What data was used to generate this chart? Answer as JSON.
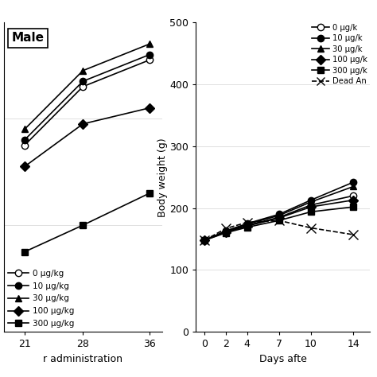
{
  "left_panel": {
    "title": "Male",
    "xlabel": "r administration",
    "days": [
      21,
      28,
      36
    ],
    "series": [
      {
        "label": "0 μg/kg",
        "marker": "o",
        "fillstyle": "none",
        "color": "black",
        "values": [
          375,
          430,
          455
        ]
      },
      {
        "label": "10 μg/kg",
        "marker": "o",
        "fillstyle": "full",
        "color": "black",
        "values": [
          380,
          435,
          460
        ]
      },
      {
        "label": "30 μg/kg",
        "marker": "^",
        "fillstyle": "full",
        "color": "black",
        "values": [
          390,
          445,
          470
        ]
      },
      {
        "label": "100 μg/kg",
        "marker": "D",
        "fillstyle": "full",
        "color": "black",
        "values": [
          355,
          395,
          410
        ]
      },
      {
        "label": "300 μg/kg",
        "marker": "s",
        "fillstyle": "full",
        "color": "black",
        "values": [
          275,
          300,
          330
        ]
      }
    ],
    "ylim": [
      200,
      490
    ],
    "yticks": [],
    "legend_loc": "lower left"
  },
  "right_panel": {
    "ylabel": "Body weight (g)",
    "xlabel": "Days afte",
    "days": [
      0,
      2,
      4,
      7,
      10,
      14
    ],
    "series": [
      {
        "label": "0 μg/k",
        "marker": "o",
        "fillstyle": "none",
        "color": "black",
        "linestyle": "-",
        "values": [
          148,
          162,
          172,
          185,
          205,
          220
        ]
      },
      {
        "label": "10 μg/k",
        "marker": "o",
        "fillstyle": "full",
        "color": "black",
        "linestyle": "-",
        "values": [
          148,
          163,
          175,
          190,
          213,
          242
        ]
      },
      {
        "label": "30 μg/k",
        "marker": "^",
        "fillstyle": "full",
        "color": "black",
        "linestyle": "-",
        "values": [
          148,
          163,
          174,
          188,
          210,
          235
        ]
      },
      {
        "label": "100 μg/k",
        "marker": "D",
        "fillstyle": "full",
        "color": "black",
        "linestyle": "-",
        "values": [
          148,
          161,
          171,
          184,
          202,
          213
        ]
      },
      {
        "label": "300 μg/k",
        "marker": "s",
        "fillstyle": "full",
        "color": "black",
        "linestyle": "-",
        "values": [
          148,
          160,
          169,
          180,
          194,
          202
        ]
      },
      {
        "label": "Dead An",
        "marker": "x",
        "fillstyle": "full",
        "color": "black",
        "linestyle": "--",
        "values": [
          148,
          167,
          177,
          180,
          168,
          157
        ]
      }
    ],
    "ylim": [
      0,
      500
    ],
    "yticks": [
      0,
      100,
      200,
      300,
      400,
      500
    ]
  },
  "background_color": "white",
  "linewidth": 1.2,
  "markersize": 6
}
